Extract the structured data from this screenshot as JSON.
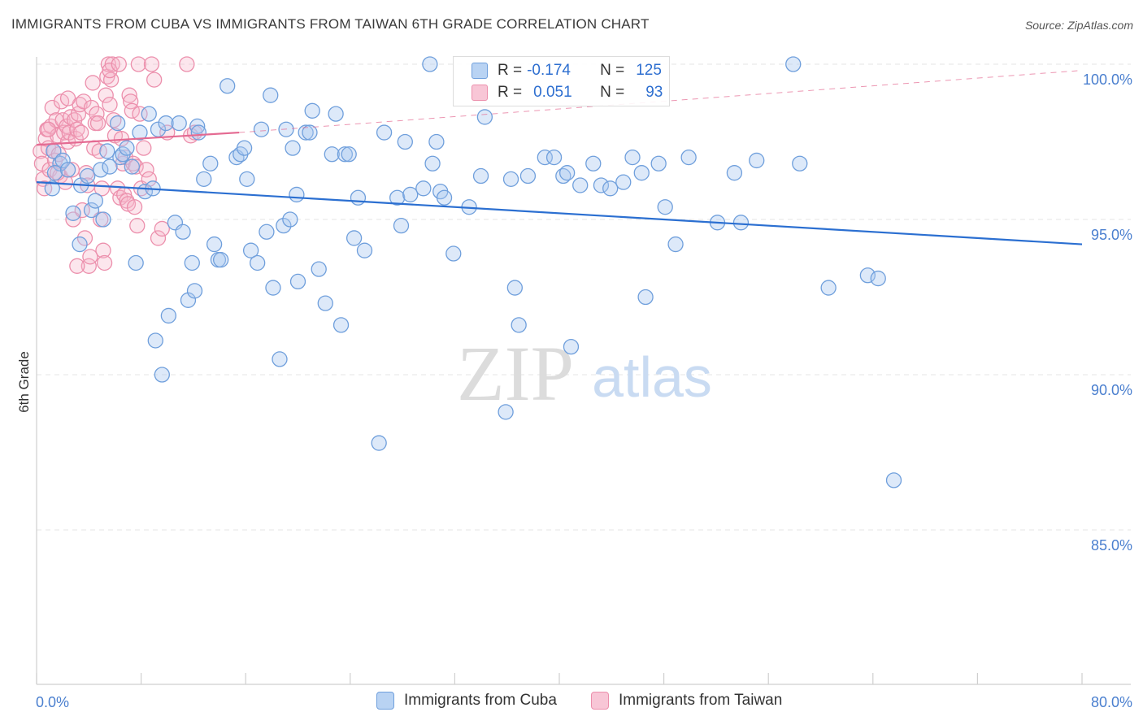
{
  "title": "IMMIGRANTS FROM CUBA VS IMMIGRANTS FROM TAIWAN 6TH GRADE CORRELATION CHART",
  "source": "Source: ZipAtlas.com",
  "colors": {
    "cuba_fill": "#a9c8f0",
    "cuba_stroke": "#6f9fdc",
    "cuba_line": "#2b6fd1",
    "taiwan_fill": "#f6b8cb",
    "taiwan_stroke": "#ec8fac",
    "taiwan_line": "#e46a92",
    "tick_text": "#4a7fcf",
    "grid": "#e4e4e4"
  },
  "legend": {
    "rows": [
      {
        "r_label": "R =",
        "r_value": "-0.174",
        "n_label": "N =",
        "n_value": "125"
      },
      {
        "r_label": "R =",
        "r_value": "0.051",
        "n_label": "N =",
        "n_value": "93"
      }
    ]
  },
  "bottom_legend": {
    "cuba": "Immigrants from Cuba",
    "taiwan": "Immigrants from Taiwan"
  },
  "watermark": {
    "zip": "ZIP",
    "atlas": "atlas"
  },
  "chart_data": {
    "type": "scatter",
    "title": "IMMIGRANTS FROM CUBA VS IMMIGRANTS FROM TAIWAN 6TH GRADE CORRELATION CHART",
    "xlabel": "",
    "ylabel": "6th Grade",
    "xlim": [
      0,
      80
    ],
    "ylim": [
      80.5,
      100.9
    ],
    "x_tick_labels": [
      "0.0%",
      "80.0%"
    ],
    "y_ticks": [
      85,
      90,
      95,
      100
    ],
    "y_tick_labels": [
      "85.0%",
      "90.0%",
      "95.0%",
      "100.0%"
    ],
    "grid": true,
    "series": [
      {
        "name": "Immigrants from Cuba",
        "R": -0.174,
        "N": 125,
        "trend": {
          "x": [
            0,
            80
          ],
          "y": [
            96.2,
            94.2
          ],
          "style": "solid"
        },
        "points": [
          [
            1.3,
            97.2
          ],
          [
            1.8,
            96.8
          ],
          [
            1.4,
            96.5
          ],
          [
            2.0,
            96.9
          ],
          [
            2.4,
            96.6
          ],
          [
            1.2,
            96.0
          ],
          [
            2.8,
            95.2
          ],
          [
            3.3,
            94.2
          ],
          [
            3.4,
            96.1
          ],
          [
            3.9,
            96.4
          ],
          [
            4.2,
            95.3
          ],
          [
            4.5,
            95.6
          ],
          [
            4.9,
            96.6
          ],
          [
            5.1,
            95.0
          ],
          [
            5.4,
            97.2
          ],
          [
            5.6,
            96.7
          ],
          [
            6.2,
            98.1
          ],
          [
            6.4,
            97.0
          ],
          [
            6.6,
            97.1
          ],
          [
            6.9,
            97.3
          ],
          [
            7.3,
            96.7
          ],
          [
            7.6,
            93.6
          ],
          [
            7.9,
            97.8
          ],
          [
            8.3,
            95.9
          ],
          [
            8.6,
            98.4
          ],
          [
            8.9,
            96.0
          ],
          [
            9.1,
            91.1
          ],
          [
            9.3,
            97.9
          ],
          [
            9.6,
            90.0
          ],
          [
            9.9,
            98.1
          ],
          [
            10.1,
            91.9
          ],
          [
            10.6,
            94.9
          ],
          [
            10.9,
            98.1
          ],
          [
            11.2,
            94.6
          ],
          [
            11.6,
            92.4
          ],
          [
            11.9,
            93.6
          ],
          [
            12.1,
            92.7
          ],
          [
            12.3,
            98.0
          ],
          [
            12.4,
            97.8
          ],
          [
            12.8,
            96.3
          ],
          [
            13.3,
            96.8
          ],
          [
            13.6,
            94.2
          ],
          [
            13.9,
            93.7
          ],
          [
            14.1,
            93.7
          ],
          [
            14.6,
            99.3
          ],
          [
            15.3,
            97.0
          ],
          [
            15.6,
            97.1
          ],
          [
            15.9,
            97.3
          ],
          [
            16.1,
            96.3
          ],
          [
            16.4,
            94.0
          ],
          [
            16.9,
            93.6
          ],
          [
            17.2,
            97.9
          ],
          [
            17.6,
            94.6
          ],
          [
            17.9,
            99.0
          ],
          [
            18.1,
            92.8
          ],
          [
            18.6,
            90.5
          ],
          [
            18.9,
            94.8
          ],
          [
            19.1,
            97.9
          ],
          [
            19.4,
            95.0
          ],
          [
            19.6,
            97.3
          ],
          [
            19.9,
            95.8
          ],
          [
            20.0,
            93.0
          ],
          [
            20.6,
            97.8
          ],
          [
            20.9,
            97.8
          ],
          [
            21.1,
            98.5
          ],
          [
            21.6,
            93.4
          ],
          [
            22.1,
            92.3
          ],
          [
            22.6,
            97.1
          ],
          [
            22.9,
            98.4
          ],
          [
            23.3,
            91.6
          ],
          [
            23.6,
            97.1
          ],
          [
            23.9,
            97.1
          ],
          [
            24.3,
            94.4
          ],
          [
            24.6,
            95.7
          ],
          [
            25.1,
            94.0
          ],
          [
            26.2,
            87.8
          ],
          [
            26.6,
            97.8
          ],
          [
            27.6,
            95.7
          ],
          [
            27.9,
            94.8
          ],
          [
            28.2,
            97.5
          ],
          [
            28.6,
            95.8
          ],
          [
            29.6,
            96.0
          ],
          [
            30.1,
            100.0
          ],
          [
            30.3,
            96.8
          ],
          [
            30.6,
            97.5
          ],
          [
            30.9,
            95.9
          ],
          [
            31.2,
            95.7
          ],
          [
            31.9,
            93.9
          ],
          [
            33.1,
            95.4
          ],
          [
            34.0,
            96.4
          ],
          [
            34.3,
            98.3
          ],
          [
            35.9,
            88.8
          ],
          [
            36.3,
            96.3
          ],
          [
            36.6,
            92.8
          ],
          [
            36.9,
            91.6
          ],
          [
            37.6,
            96.4
          ],
          [
            38.9,
            97.0
          ],
          [
            39.6,
            97.0
          ],
          [
            40.3,
            96.4
          ],
          [
            40.6,
            96.5
          ],
          [
            40.9,
            90.9
          ],
          [
            41.6,
            96.1
          ],
          [
            42.6,
            96.8
          ],
          [
            43.2,
            96.1
          ],
          [
            43.9,
            96.0
          ],
          [
            44.9,
            96.2
          ],
          [
            45.6,
            97.0
          ],
          [
            46.3,
            96.5
          ],
          [
            46.6,
            92.5
          ],
          [
            47.6,
            96.8
          ],
          [
            48.1,
            95.4
          ],
          [
            48.9,
            94.2
          ],
          [
            49.9,
            97.0
          ],
          [
            52.1,
            94.9
          ],
          [
            53.4,
            96.5
          ],
          [
            53.9,
            94.9
          ],
          [
            55.1,
            96.9
          ],
          [
            57.9,
            100.0
          ],
          [
            58.4,
            96.8
          ],
          [
            60.6,
            92.8
          ],
          [
            63.6,
            93.2
          ],
          [
            64.4,
            93.1
          ],
          [
            65.6,
            86.6
          ]
        ]
      },
      {
        "name": "Immigrants from Taiwan",
        "R": 0.051,
        "N": 93,
        "trend": {
          "x": [
            0,
            15.5
          ],
          "y": [
            97.4,
            97.8
          ],
          "style": "solid",
          "dashed_extension": {
            "x": [
              15.5,
              80
            ],
            "y": [
              97.8,
              99.8
            ]
          }
        },
        "points": [
          [
            0.3,
            97.2
          ],
          [
            0.4,
            96.8
          ],
          [
            0.5,
            96.3
          ],
          [
            0.6,
            96.0
          ],
          [
            0.7,
            97.6
          ],
          [
            0.8,
            97.9
          ],
          [
            0.9,
            97.3
          ],
          [
            1.0,
            96.6
          ],
          [
            1.1,
            98.0
          ],
          [
            1.2,
            98.6
          ],
          [
            1.3,
            97.2
          ],
          [
            1.4,
            96.9
          ],
          [
            1.5,
            98.2
          ],
          [
            1.6,
            97.7
          ],
          [
            1.7,
            97.1
          ],
          [
            1.8,
            96.4
          ],
          [
            1.9,
            98.8
          ],
          [
            2.0,
            98.2
          ],
          [
            2.1,
            97.8
          ],
          [
            2.2,
            96.2
          ],
          [
            2.3,
            98.0
          ],
          [
            2.4,
            97.5
          ],
          [
            2.5,
            97.8
          ],
          [
            2.6,
            98.3
          ],
          [
            2.7,
            96.6
          ],
          [
            2.8,
            95.0
          ],
          [
            2.9,
            98.2
          ],
          [
            3.0,
            97.6
          ],
          [
            3.1,
            97.9
          ],
          [
            3.2,
            98.4
          ],
          [
            3.3,
            98.7
          ],
          [
            3.4,
            97.8
          ],
          [
            3.5,
            95.3
          ],
          [
            3.6,
            98.8
          ],
          [
            3.7,
            94.4
          ],
          [
            3.8,
            96.5
          ],
          [
            3.9,
            96.1
          ],
          [
            4.0,
            93.5
          ],
          [
            4.2,
            98.6
          ],
          [
            4.3,
            99.4
          ],
          [
            4.4,
            97.3
          ],
          [
            4.5,
            98.1
          ],
          [
            4.6,
            98.4
          ],
          [
            4.7,
            98.1
          ],
          [
            4.8,
            97.2
          ],
          [
            4.9,
            95.0
          ],
          [
            5.0,
            96.0
          ],
          [
            5.1,
            94.0
          ],
          [
            5.2,
            93.6
          ],
          [
            5.3,
            99.0
          ],
          [
            5.4,
            99.6
          ],
          [
            5.5,
            100.0
          ],
          [
            5.6,
            98.7
          ],
          [
            5.7,
            99.5
          ],
          [
            5.8,
            100.0
          ],
          [
            5.9,
            98.2
          ],
          [
            6.0,
            97.7
          ],
          [
            6.2,
            96.0
          ],
          [
            6.4,
            95.7
          ],
          [
            6.5,
            97.6
          ],
          [
            6.6,
            96.8
          ],
          [
            6.7,
            95.8
          ],
          [
            6.8,
            97.0
          ],
          [
            6.9,
            95.6
          ],
          [
            7.0,
            95.5
          ],
          [
            7.1,
            99.0
          ],
          [
            7.2,
            98.8
          ],
          [
            7.3,
            98.5
          ],
          [
            7.4,
            96.8
          ],
          [
            7.5,
            95.4
          ],
          [
            7.6,
            96.7
          ],
          [
            7.7,
            94.8
          ],
          [
            7.8,
            100.0
          ],
          [
            7.9,
            98.4
          ],
          [
            8.0,
            96.0
          ],
          [
            8.2,
            97.3
          ],
          [
            8.4,
            96.6
          ],
          [
            8.6,
            96.3
          ],
          [
            8.8,
            100.0
          ],
          [
            9.0,
            99.5
          ],
          [
            9.3,
            94.4
          ],
          [
            9.6,
            94.7
          ],
          [
            10.0,
            97.8
          ],
          [
            11.5,
            100.0
          ],
          [
            11.8,
            97.7
          ],
          [
            12.1,
            97.8
          ],
          [
            0.9,
            97.9
          ],
          [
            1.6,
            96.5
          ],
          [
            2.4,
            98.9
          ],
          [
            3.1,
            93.5
          ],
          [
            4.1,
            93.8
          ],
          [
            5.6,
            99.8
          ],
          [
            6.3,
            100.0
          ]
        ]
      }
    ]
  }
}
